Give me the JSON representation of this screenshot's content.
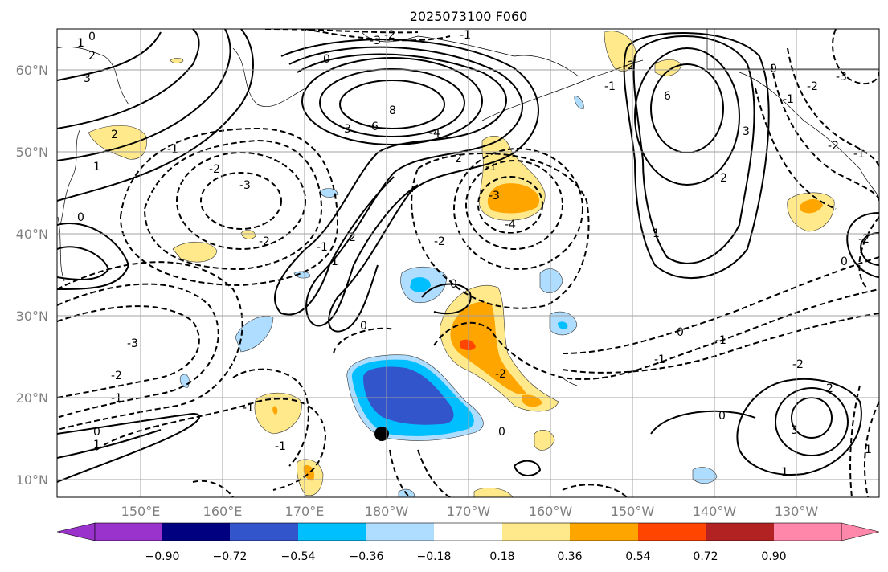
{
  "title": "2025073100 F060",
  "lat_labels": [
    "60°N",
    "50°N",
    "40°N",
    "30°N",
    "20°N",
    "10°N"
  ],
  "lon_labels": [
    "150°E",
    "160°E",
    "170°E",
    "180°W",
    "170°W",
    "160°W",
    "150°W",
    "140°W",
    "130°W"
  ],
  "colorbar": {
    "tick_labels": [
      "−0.90",
      "−0.72",
      "−0.54",
      "−0.36",
      "−0.18",
      "0.18",
      "0.36",
      "0.54",
      "0.72",
      "0.90"
    ],
    "colors": [
      "#9933cc",
      "#000080",
      "#3355cc",
      "#00bfff",
      "#aeddff",
      "#ffffff",
      "#ffe98a",
      "#ffa500",
      "#ff4500",
      "#b22222",
      "#ff88aa"
    ]
  },
  "contour_labels": [
    "0",
    "1",
    "2",
    "3",
    "2",
    "1",
    "0",
    "-1",
    "-2",
    "-3",
    "-2",
    "3",
    "6",
    "8",
    "-4",
    "-1",
    "-2",
    "-3",
    "-2",
    "-1",
    "2",
    "-3",
    "-4",
    "0",
    "-1",
    "1",
    "2",
    "3",
    "6",
    "-1",
    "-2",
    "0",
    "-1",
    "-2",
    "-3",
    "-1",
    "-2",
    "1",
    "2",
    "0",
    "-2",
    "-3",
    "-1",
    "-2",
    "0",
    "0",
    "-1",
    "-2",
    "-1",
    "0",
    "-1",
    "0",
    "1",
    "0",
    "-1",
    "-2",
    "1",
    "2",
    "0",
    "3",
    "1"
  ],
  "marker": {
    "name": "storm-position-marker"
  }
}
